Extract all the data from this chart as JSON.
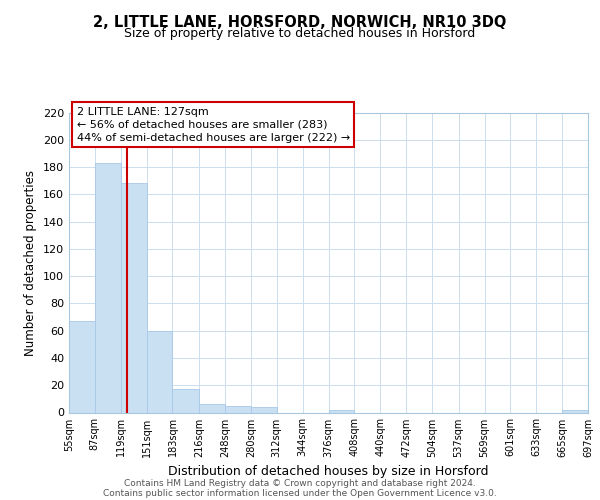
{
  "title": "2, LITTLE LANE, HORSFORD, NORWICH, NR10 3DQ",
  "subtitle": "Size of property relative to detached houses in Horsford",
  "xlabel": "Distribution of detached houses by size in Horsford",
  "ylabel": "Number of detached properties",
  "bar_color": "#c9dff2",
  "bar_edge_color": "#a8c8e8",
  "marker_line_color": "#cc0000",
  "marker_value": 127,
  "annotation_title": "2 LITTLE LANE: 127sqm",
  "annotation_line1": "← 56% of detached houses are smaller (283)",
  "annotation_line2": "44% of semi-detached houses are larger (222) →",
  "bin_edges": [
    55,
    87,
    119,
    151,
    183,
    216,
    248,
    280,
    312,
    344,
    376,
    408,
    440,
    472,
    504,
    537,
    569,
    601,
    633,
    665,
    697
  ],
  "bin_labels": [
    "55sqm",
    "87sqm",
    "119sqm",
    "151sqm",
    "183sqm",
    "216sqm",
    "248sqm",
    "280sqm",
    "312sqm",
    "344sqm",
    "376sqm",
    "408sqm",
    "440sqm",
    "472sqm",
    "504sqm",
    "537sqm",
    "569sqm",
    "601sqm",
    "633sqm",
    "665sqm",
    "697sqm"
  ],
  "counts": [
    67,
    183,
    168,
    60,
    17,
    6,
    5,
    4,
    0,
    0,
    2,
    0,
    0,
    0,
    0,
    0,
    0,
    0,
    0,
    2
  ],
  "ylim": [
    0,
    220
  ],
  "yticks": [
    0,
    20,
    40,
    60,
    80,
    100,
    120,
    140,
    160,
    180,
    200,
    220
  ],
  "footer1": "Contains HM Land Registry data © Crown copyright and database right 2024.",
  "footer2": "Contains public sector information licensed under the Open Government Licence v3.0.",
  "background_color": "#ffffff",
  "grid_color": "#ccddef"
}
